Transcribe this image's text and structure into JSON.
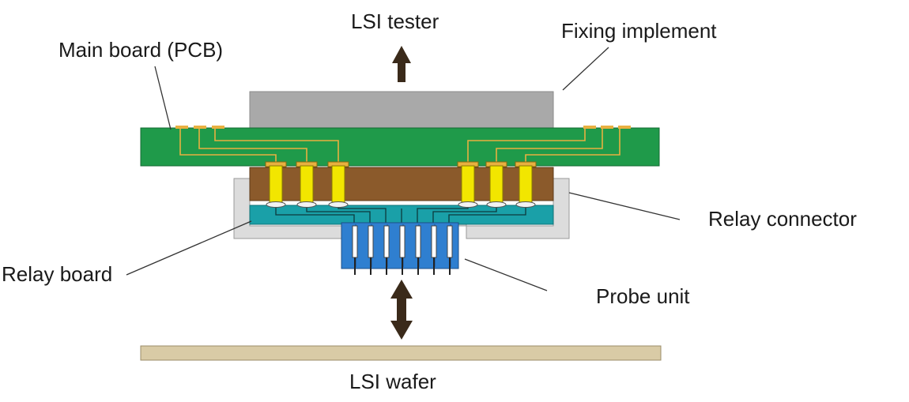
{
  "labels": {
    "lsi_tester": "LSI tester",
    "fixing_implement": "Fixing implement",
    "main_board": "Main board (PCB)",
    "relay_connector": "Relay connector",
    "relay_board": "Relay board",
    "probe_unit": "Probe unit",
    "lsi_wafer": "LSI wafer"
  },
  "colors": {
    "main_board": "#1f9a4a",
    "fixing_implement": "#a9a9a9",
    "relay_connector_body": "#8b5a2b",
    "relay_connector_frame": "#dcdcdc",
    "relay_board": "#1aa0a8",
    "probe_unit": "#2f7fd0",
    "pogo_pin": "#f2e600",
    "trace": "#e8b040",
    "wafer": "#d9cba6",
    "arrow": "#3a2a1a"
  }
}
